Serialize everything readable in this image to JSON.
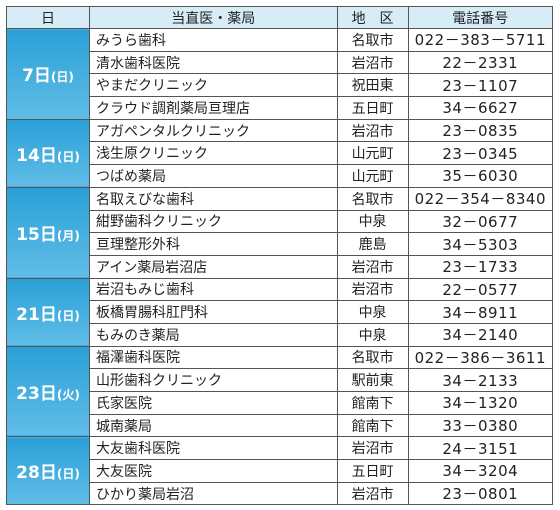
{
  "header": [
    "日",
    "当直医・薬局",
    "地　区",
    "電話番号"
  ],
  "groups": [
    {
      "day": "7日",
      "weekday": "(日)",
      "rows": [
        [
          "みうら歯科",
          "名取市",
          "022－383－5711"
        ],
        [
          "清水歯科医院",
          "岩沼市",
          "22－2331"
        ],
        [
          "やまだクリニック",
          "祝田東",
          "23－1107"
        ],
        [
          "クラウド調剤薬局亘理店",
          "五日町",
          "34－6627"
        ]
      ]
    },
    {
      "day": "14日",
      "weekday": "(日)",
      "rows": [
        [
          "アガペンタルクリニック",
          "岩沼市",
          "23－0835"
        ],
        [
          "浅生原クリニック",
          "山元町",
          "23－0345"
        ],
        [
          "つばめ薬局",
          "山元町",
          "35－6030"
        ]
      ]
    },
    {
      "day": "15日",
      "weekday": "(月)",
      "rows": [
        [
          "名取えびな歯科",
          "名取市",
          "022－354－8340"
        ],
        [
          "紺野歯科クリニック",
          "中泉",
          "32－0677"
        ],
        [
          "亘理整形外科",
          "鹿島",
          "34－5303"
        ],
        [
          "アイン薬局岩沼店",
          "岩沼市",
          "23－1733"
        ]
      ]
    },
    {
      "day": "21日",
      "weekday": "(日)",
      "rows": [
        [
          "岩沼もみじ歯科",
          "岩沼市",
          "22－0577"
        ],
        [
          "板橋胃腸科肛門科",
          "中泉",
          "34－8911"
        ],
        [
          "もみのき薬局",
          "中泉",
          "34－2140"
        ]
      ]
    },
    {
      "day": "23日",
      "weekday": "(火)",
      "rows": [
        [
          "福澤歯科医院",
          "名取市",
          "022－386－3611"
        ],
        [
          "山形歯科クリニック",
          "駅前東",
          "34－2133"
        ],
        [
          "氏家医院",
          "館南下",
          "34－1320"
        ],
        [
          "城南薬局",
          "館南下",
          "33－0380"
        ]
      ]
    },
    {
      "day": "28日",
      "weekday": "(日)",
      "rows": [
        [
          "大友歯科医院",
          "岩沼市",
          "24－3151"
        ],
        [
          "大友医院",
          "五日町",
          "34－3204"
        ],
        [
          "ひかり薬局岩沼",
          "岩沼市",
          "23－0801"
        ]
      ]
    }
  ]
}
